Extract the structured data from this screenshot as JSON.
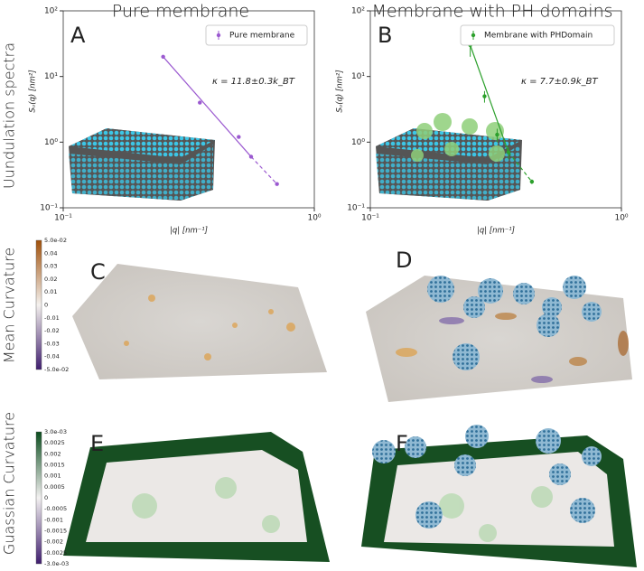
{
  "column_titles": [
    "Pure membrane",
    "Membrane with PH domains"
  ],
  "row_labels": [
    "Uundulation spectra",
    "Mean Curvature",
    "Guassian Curvature"
  ],
  "chart_data": [
    {
      "type": "scatter",
      "label": "A",
      "xlabel": "|q| [nm⁻¹]",
      "ylabel": "Sᵤ(q) [nm²]",
      "annotation": "κ = 11.8±0.3k_BT",
      "log_x": true,
      "log_y": true,
      "legend": "upper right",
      "xlim": [
        0.1,
        1
      ],
      "ylim": [
        0.1,
        100
      ],
      "xticks": [
        {
          "value": 0.1,
          "label": "10⁻¹"
        },
        {
          "value": 1,
          "label": "10⁰"
        }
      ],
      "yticks": [
        {
          "value": 0.1,
          "label": "10⁻¹"
        },
        {
          "value": 1,
          "label": "10⁰"
        },
        {
          "value": 10,
          "label": "10¹"
        },
        {
          "value": 100,
          "label": "10²"
        }
      ],
      "series": [
        {
          "name": "Pure membrane",
          "color": "#9b59d0",
          "x": [
            0.25,
            0.35,
            0.5,
            0.56,
            0.71
          ],
          "values": [
            20,
            4,
            1.2,
            0.6,
            0.23
          ]
        }
      ]
    },
    {
      "type": "scatter",
      "label": "B",
      "xlabel": "|q| [nm⁻¹]",
      "ylabel": "Sᵤ(q) [nm²]",
      "annotation": "κ = 7.7±0.9k_BT",
      "log_x": true,
      "log_y": true,
      "legend": "upper right",
      "xlim": [
        0.1,
        1
      ],
      "ylim": [
        0.1,
        100
      ],
      "xticks": [
        {
          "value": 0.1,
          "label": "10⁻¹"
        },
        {
          "value": 1,
          "label": "10⁰"
        }
      ],
      "yticks": [
        {
          "value": 0.1,
          "label": "10⁻¹"
        },
        {
          "value": 1,
          "label": "10⁰"
        },
        {
          "value": 10,
          "label": "10¹"
        },
        {
          "value": 100,
          "label": "10²"
        }
      ],
      "series": [
        {
          "name": "Membrane with PHDomain",
          "color": "#2ca02c",
          "x": [
            0.25,
            0.285,
            0.32,
            0.355,
            0.44
          ],
          "values": [
            30,
            5,
            1.3,
            0.7,
            0.25
          ],
          "errors": [
            10,
            1,
            0.3,
            0.15,
            0.02
          ]
        }
      ]
    }
  ],
  "panels": [
    {
      "label": "C"
    },
    {
      "label": "D"
    },
    {
      "label": "E"
    },
    {
      "label": "F"
    }
  ],
  "colorbars": [
    {
      "ticks": [
        "5.0e-02",
        "0.04",
        "0.03",
        "0.02",
        "0.01",
        "0",
        "-0.01",
        "-0.02",
        "-0.03",
        "-0.04",
        "-5.0e-02"
      ]
    },
    {
      "ticks": [
        "3.0e-03",
        "0.0025",
        "0.002",
        "0.0015",
        "0.001",
        "0.0005",
        "0",
        "-0.0005",
        "-0.001",
        "-0.0015",
        "-0.002",
        "-0.0025",
        "-3.0e-03"
      ]
    }
  ]
}
